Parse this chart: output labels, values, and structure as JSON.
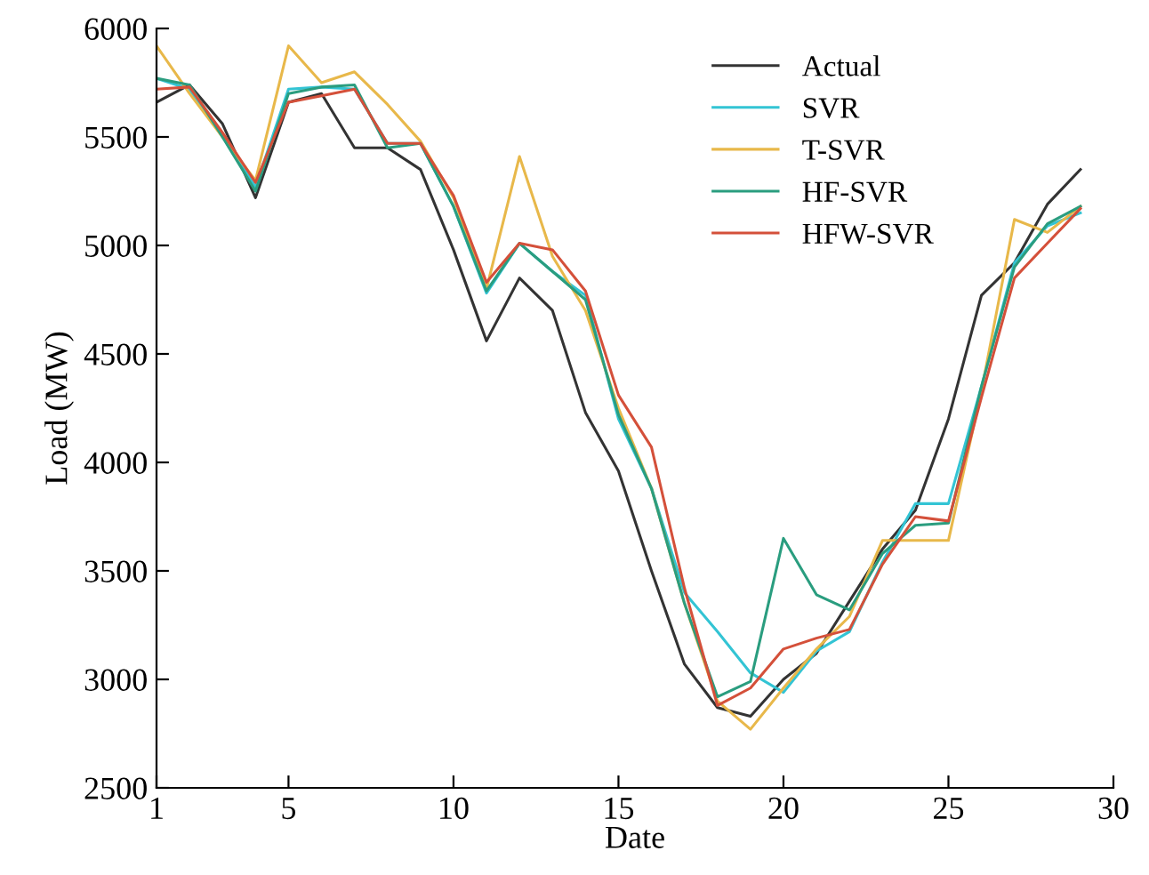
{
  "chart_data": {
    "type": "line",
    "xlabel": "Date",
    "ylabel": "Load (MW)",
    "x": [
      1,
      2,
      3,
      4,
      5,
      6,
      7,
      8,
      9,
      10,
      11,
      12,
      13,
      14,
      15,
      16,
      17,
      18,
      19,
      20,
      21,
      22,
      23,
      24,
      25,
      26,
      27,
      28,
      29
    ],
    "xlim": [
      1,
      30
    ],
    "xticks": [
      1,
      5,
      10,
      15,
      20,
      25,
      30
    ],
    "ylim": [
      2500,
      6000
    ],
    "yticks": [
      2500,
      3000,
      3500,
      4000,
      4500,
      5000,
      5500,
      6000
    ],
    "grid": false,
    "legend": "top right",
    "marker": "none",
    "line_style": "solid",
    "series": [
      {
        "name": "Actual",
        "color": "#333333",
        "values": [
          5660,
          5740,
          5560,
          5220,
          5660,
          5700,
          5450,
          5450,
          5350,
          4980,
          4560,
          4850,
          4700,
          4230,
          3960,
          3500,
          3070,
          2870,
          2830,
          3000,
          3120,
          3360,
          3600,
          3780,
          4200,
          4770,
          4920,
          5190,
          5350
        ]
      },
      {
        "name": "SVR",
        "color": "#33c4d4",
        "values": [
          5770,
          5720,
          5500,
          5270,
          5720,
          5730,
          5720,
          5470,
          5470,
          5180,
          4780,
          5010,
          4880,
          4770,
          4200,
          3880,
          3400,
          3220,
          3030,
          2940,
          3130,
          3220,
          3540,
          3810,
          3810,
          4350,
          4920,
          5090,
          5150
        ]
      },
      {
        "name": "T-SVR",
        "color": "#e8b84a",
        "values": [
          5920,
          5700,
          5500,
          5300,
          5920,
          5750,
          5800,
          5650,
          5480,
          5220,
          4800,
          5410,
          4950,
          4700,
          4250,
          3880,
          3350,
          2900,
          2770,
          2960,
          3140,
          3290,
          3640,
          3640,
          3640,
          4330,
          5120,
          5060,
          5180
        ]
      },
      {
        "name": "HF-SVR",
        "color": "#2a9d7f",
        "values": [
          5770,
          5740,
          5500,
          5250,
          5700,
          5730,
          5740,
          5450,
          5470,
          5180,
          4790,
          5010,
          4880,
          4750,
          4220,
          3880,
          3350,
          2920,
          2990,
          3650,
          3390,
          3320,
          3580,
          3710,
          3720,
          4350,
          4900,
          5100,
          5180
        ]
      },
      {
        "name": "HFW-SVR",
        "color": "#d4503a",
        "values": [
          5720,
          5730,
          5520,
          5290,
          5660,
          5690,
          5720,
          5470,
          5470,
          5230,
          4830,
          5010,
          4980,
          4790,
          4310,
          4070,
          3420,
          2880,
          2960,
          3140,
          3190,
          3230,
          3530,
          3750,
          3730,
          4300,
          4850,
          5010,
          5170
        ]
      }
    ]
  }
}
